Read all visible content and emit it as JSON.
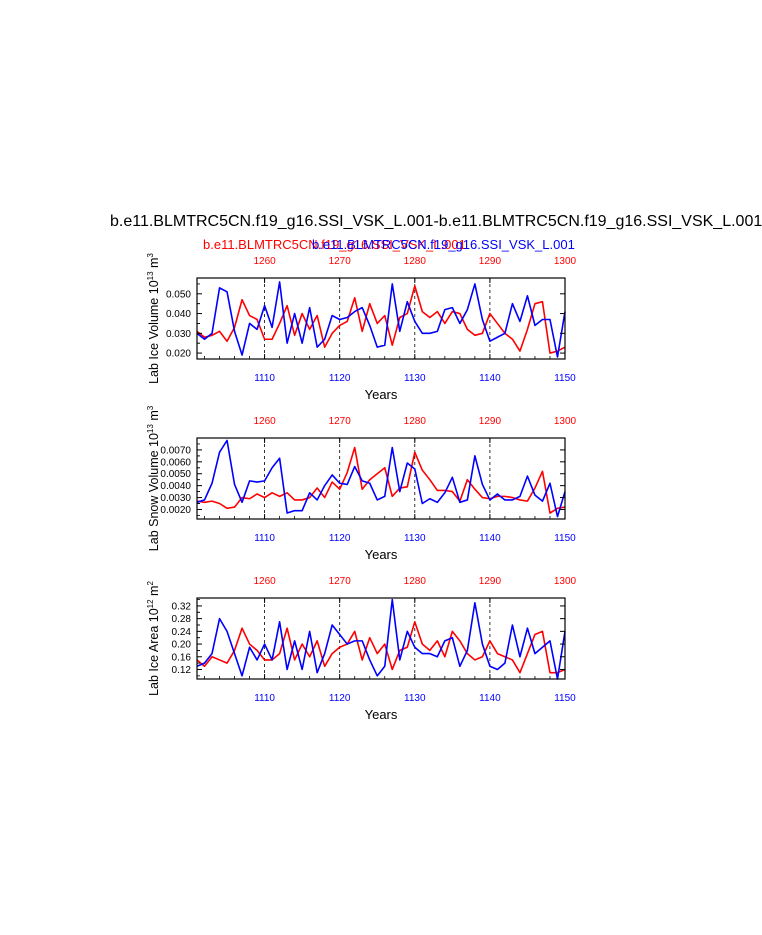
{
  "title": "b.e11.BLMTRC5CN.f19_g16.SSI_VSK_L.001-b.e11.BLMTRC5CN.f19_g16.SSI_VSK_L.001",
  "subtitle_red": "b.e11.BLMTRC5CN.f19_g16.SSI_VSK_L.001",
  "subtitle_blue": "b.e11.BLMTRC5CN.f19_g16.SSI_VSK_L.001",
  "colors": {
    "series_a": "#ff0000",
    "series_b": "#0000ff",
    "axis": "#000000"
  },
  "chart_data": [
    {
      "type": "line",
      "ylabel": "Lab Ice Volume 10",
      "ylabel_exp": "13",
      "ylabel_unit": " m",
      "ylabel_unit_exp": "3",
      "xlabel": "Years",
      "ylim": [
        0.017,
        0.058
      ],
      "yticks": [
        0.02,
        0.03,
        0.04,
        0.05
      ],
      "ytick_labels": [
        "0.020",
        "0.030",
        "0.040",
        "0.050"
      ],
      "bottom_axis": {
        "range": [
          1101,
          1150
        ],
        "ticks": [
          1110,
          1120,
          1130,
          1140,
          1150
        ],
        "labels": [
          "1110",
          "1120",
          "1130",
          "1140",
          "1150"
        ]
      },
      "top_axis": {
        "range": [
          1251,
          1300
        ],
        "ticks": [
          1260,
          1270,
          1280,
          1290,
          1300
        ],
        "labels": [
          "1260",
          "1270",
          "1280",
          "1290",
          "1300"
        ]
      },
      "series": [
        {
          "name": "b.e11.BLMTRC5CN.f19_g16.SSI_VSK_L.001",
          "color": "red",
          "axis": "top",
          "x": [
            1251,
            1252,
            1253,
            1254,
            1255,
            1256,
            1257,
            1258,
            1259,
            1260,
            1261,
            1262,
            1263,
            1264,
            1265,
            1266,
            1267,
            1268,
            1269,
            1270,
            1271,
            1272,
            1273,
            1274,
            1275,
            1276,
            1277,
            1278,
            1279,
            1280,
            1281,
            1282,
            1283,
            1284,
            1285,
            1286,
            1287,
            1288,
            1289,
            1290,
            1291,
            1292,
            1293,
            1294,
            1295,
            1296,
            1297,
            1298,
            1299,
            1300
          ],
          "values": [
            0.031,
            0.028,
            0.029,
            0.031,
            0.026,
            0.033,
            0.047,
            0.039,
            0.037,
            0.027,
            0.027,
            0.035,
            0.044,
            0.029,
            0.04,
            0.032,
            0.039,
            0.023,
            0.03,
            0.034,
            0.036,
            0.048,
            0.031,
            0.045,
            0.035,
            0.039,
            0.024,
            0.038,
            0.04,
            0.054,
            0.041,
            0.038,
            0.041,
            0.035,
            0.041,
            0.04,
            0.032,
            0.029,
            0.03,
            0.04,
            0.035,
            0.03,
            0.027,
            0.021,
            0.032,
            0.045,
            0.046,
            0.02,
            0.021,
            0.023
          ]
        },
        {
          "name": "b.e11.BLMTRC5CN.f19_g16.SSI_VSK_L.001",
          "color": "blue",
          "axis": "bottom",
          "x": [
            1101,
            1102,
            1103,
            1104,
            1105,
            1106,
            1107,
            1108,
            1109,
            1110,
            1111,
            1112,
            1113,
            1114,
            1115,
            1116,
            1117,
            1118,
            1119,
            1120,
            1121,
            1122,
            1123,
            1124,
            1125,
            1126,
            1127,
            1128,
            1129,
            1130,
            1131,
            1132,
            1133,
            1134,
            1135,
            1136,
            1137,
            1138,
            1139,
            1140,
            1141,
            1142,
            1143,
            1144,
            1145,
            1146,
            1147,
            1148,
            1149,
            1150
          ],
          "values": [
            0.03,
            0.027,
            0.03,
            0.053,
            0.051,
            0.031,
            0.019,
            0.035,
            0.032,
            0.044,
            0.033,
            0.056,
            0.025,
            0.04,
            0.025,
            0.043,
            0.023,
            0.027,
            0.039,
            0.037,
            0.038,
            0.041,
            0.043,
            0.034,
            0.023,
            0.024,
            0.055,
            0.031,
            0.046,
            0.036,
            0.03,
            0.03,
            0.031,
            0.042,
            0.043,
            0.035,
            0.042,
            0.055,
            0.037,
            0.026,
            0.028,
            0.03,
            0.045,
            0.036,
            0.049,
            0.034,
            0.037,
            0.037,
            0.018,
            0.041
          ]
        }
      ]
    },
    {
      "type": "line",
      "ylabel": "Lab Snow Volume 10",
      "ylabel_exp": "13",
      "ylabel_unit": " m",
      "ylabel_unit_exp": "3",
      "xlabel": "Years",
      "ylim": [
        0.0012,
        0.008
      ],
      "yticks": [
        0.002,
        0.003,
        0.004,
        0.005,
        0.006,
        0.007
      ],
      "ytick_labels": [
        "0.0020",
        "0.0030",
        "0.0040",
        "0.0050",
        "0.0060",
        "0.0070"
      ],
      "bottom_axis": {
        "range": [
          1101,
          1150
        ],
        "ticks": [
          1110,
          1120,
          1130,
          1140,
          1150
        ],
        "labels": [
          "1110",
          "1120",
          "1130",
          "1140",
          "1150"
        ]
      },
      "top_axis": {
        "range": [
          1251,
          1300
        ],
        "ticks": [
          1260,
          1270,
          1280,
          1290,
          1300
        ],
        "labels": [
          "1260",
          "1270",
          "1280",
          "1290",
          "1300"
        ]
      },
      "series": [
        {
          "name": "b.e11.BLMTRC5CN.f19_g16.SSI_VSK_L.001",
          "color": "red",
          "axis": "top",
          "x": [
            1251,
            1252,
            1253,
            1254,
            1255,
            1256,
            1257,
            1258,
            1259,
            1260,
            1261,
            1262,
            1263,
            1264,
            1265,
            1266,
            1267,
            1268,
            1269,
            1270,
            1271,
            1272,
            1273,
            1274,
            1275,
            1276,
            1277,
            1278,
            1279,
            1280,
            1281,
            1282,
            1283,
            1284,
            1285,
            1286,
            1287,
            1288,
            1289,
            1290,
            1291,
            1292,
            1293,
            1294,
            1295,
            1296,
            1297,
            1298,
            1299,
            1300
          ],
          "values": [
            0.0027,
            0.0026,
            0.0027,
            0.0025,
            0.0021,
            0.0022,
            0.003,
            0.0029,
            0.0033,
            0.003,
            0.0034,
            0.0031,
            0.0034,
            0.0028,
            0.0028,
            0.003,
            0.0038,
            0.003,
            0.0043,
            0.0037,
            0.0051,
            0.0072,
            0.0037,
            0.0045,
            0.005,
            0.0055,
            0.0031,
            0.0038,
            0.0039,
            0.0068,
            0.0053,
            0.0045,
            0.0036,
            0.0036,
            0.0035,
            0.0027,
            0.0045,
            0.0037,
            0.003,
            0.0029,
            0.0031,
            0.0031,
            0.003,
            0.0028,
            0.0027,
            0.0038,
            0.0052,
            0.0017,
            0.0021,
            0.0022
          ]
        },
        {
          "name": "b.e11.BLMTRC5CN.f19_g16.SSI_VSK_L.001",
          "color": "blue",
          "axis": "bottom",
          "x": [
            1101,
            1102,
            1103,
            1104,
            1105,
            1106,
            1107,
            1108,
            1109,
            1110,
            1111,
            1112,
            1113,
            1114,
            1115,
            1116,
            1117,
            1118,
            1119,
            1120,
            1121,
            1122,
            1123,
            1124,
            1125,
            1126,
            1127,
            1128,
            1129,
            1130,
            1131,
            1132,
            1133,
            1134,
            1135,
            1136,
            1137,
            1138,
            1139,
            1140,
            1141,
            1142,
            1143,
            1144,
            1145,
            1146,
            1147,
            1148,
            1149,
            1150
          ],
          "values": [
            0.0026,
            0.0028,
            0.0042,
            0.0068,
            0.0078,
            0.0041,
            0.0026,
            0.0044,
            0.0043,
            0.0044,
            0.0055,
            0.0063,
            0.0017,
            0.0019,
            0.0019,
            0.0034,
            0.0028,
            0.004,
            0.0049,
            0.0042,
            0.0041,
            0.0056,
            0.0044,
            0.0042,
            0.0028,
            0.0031,
            0.0072,
            0.0035,
            0.0059,
            0.0054,
            0.0025,
            0.0029,
            0.0026,
            0.0034,
            0.0047,
            0.0026,
            0.0028,
            0.0065,
            0.0041,
            0.0028,
            0.0033,
            0.0028,
            0.0028,
            0.0031,
            0.0048,
            0.0032,
            0.0027,
            0.0042,
            0.0014,
            0.0035
          ]
        }
      ]
    },
    {
      "type": "line",
      "ylabel": "Lab Ice Area 10",
      "ylabel_exp": "12",
      "ylabel_unit": " m",
      "ylabel_unit_exp": "2",
      "xlabel": "Years",
      "ylim": [
        0.09,
        0.345
      ],
      "yticks": [
        0.12,
        0.16,
        0.2,
        0.24,
        0.28,
        0.32
      ],
      "ytick_labels": [
        "0.12",
        "0.16",
        "0.20",
        "0.24",
        "0.28",
        "0.32"
      ],
      "bottom_axis": {
        "range": [
          1101,
          1150
        ],
        "ticks": [
          1110,
          1120,
          1130,
          1140,
          1150
        ],
        "labels": [
          "1110",
          "1120",
          "1130",
          "1140",
          "1150"
        ]
      },
      "top_axis": {
        "range": [
          1251,
          1300
        ],
        "ticks": [
          1260,
          1270,
          1280,
          1290,
          1300
        ],
        "labels": [
          "1260",
          "1270",
          "1280",
          "1290",
          "1300"
        ]
      },
      "series": [
        {
          "name": "b.e11.BLMTRC5CN.f19_g16.SSI_VSK_L.001",
          "color": "red",
          "axis": "top",
          "x": [
            1251,
            1252,
            1253,
            1254,
            1255,
            1256,
            1257,
            1258,
            1259,
            1260,
            1261,
            1262,
            1263,
            1264,
            1265,
            1266,
            1267,
            1268,
            1269,
            1270,
            1271,
            1272,
            1273,
            1274,
            1275,
            1276,
            1277,
            1278,
            1279,
            1280,
            1281,
            1282,
            1283,
            1284,
            1285,
            1286,
            1287,
            1288,
            1289,
            1290,
            1291,
            1292,
            1293,
            1294,
            1295,
            1296,
            1297,
            1298,
            1299,
            1300
          ],
          "values": [
            0.15,
            0.13,
            0.16,
            0.15,
            0.14,
            0.18,
            0.25,
            0.2,
            0.18,
            0.15,
            0.15,
            0.17,
            0.25,
            0.15,
            0.2,
            0.16,
            0.21,
            0.13,
            0.17,
            0.19,
            0.2,
            0.24,
            0.15,
            0.22,
            0.17,
            0.2,
            0.12,
            0.18,
            0.19,
            0.27,
            0.2,
            0.18,
            0.21,
            0.16,
            0.24,
            0.21,
            0.17,
            0.15,
            0.16,
            0.21,
            0.17,
            0.16,
            0.15,
            0.11,
            0.17,
            0.23,
            0.24,
            0.11,
            0.11,
            0.12
          ]
        },
        {
          "name": "b.e11.BLMTRC5CN.f19_g16.SSI_VSK_L.001",
          "color": "blue",
          "axis": "bottom",
          "x": [
            1101,
            1102,
            1103,
            1104,
            1105,
            1106,
            1107,
            1108,
            1109,
            1110,
            1111,
            1112,
            1113,
            1114,
            1115,
            1116,
            1117,
            1118,
            1119,
            1120,
            1121,
            1122,
            1123,
            1124,
            1125,
            1126,
            1127,
            1128,
            1129,
            1130,
            1131,
            1132,
            1133,
            1134,
            1135,
            1136,
            1137,
            1138,
            1139,
            1140,
            1141,
            1142,
            1143,
            1144,
            1145,
            1146,
            1147,
            1148,
            1149,
            1150
          ],
          "values": [
            0.13,
            0.14,
            0.17,
            0.28,
            0.24,
            0.17,
            0.1,
            0.19,
            0.15,
            0.2,
            0.15,
            0.27,
            0.12,
            0.21,
            0.12,
            0.24,
            0.11,
            0.17,
            0.26,
            0.23,
            0.2,
            0.21,
            0.21,
            0.15,
            0.1,
            0.13,
            0.34,
            0.15,
            0.24,
            0.19,
            0.17,
            0.17,
            0.16,
            0.21,
            0.22,
            0.13,
            0.18,
            0.33,
            0.2,
            0.13,
            0.12,
            0.14,
            0.26,
            0.16,
            0.25,
            0.17,
            0.19,
            0.21,
            0.09,
            0.24
          ]
        }
      ]
    }
  ]
}
